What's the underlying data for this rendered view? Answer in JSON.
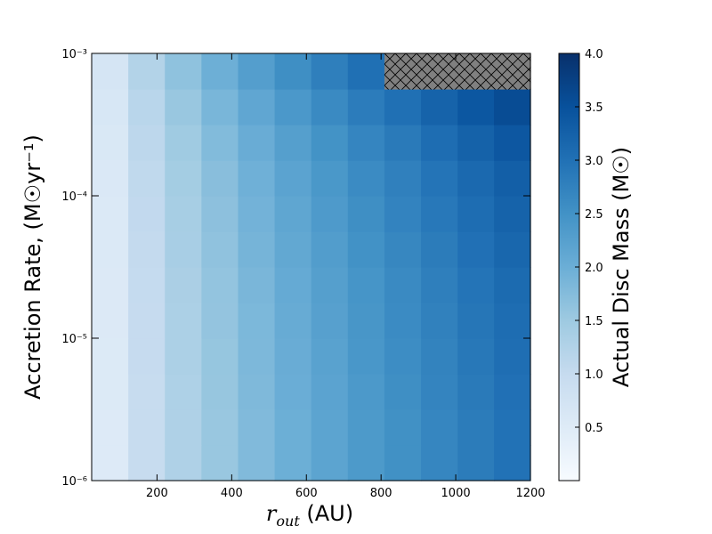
{
  "chart_data": {
    "type": "heatmap",
    "xlabel": {
      "base": "r",
      "sub": "out",
      "rest": " (AU)"
    },
    "ylabel": "Accretion Rate, (M☉yr⁻¹)",
    "colorbar_label": "Actual Disc Mass (M☉)",
    "x": [
      74,
      172,
      270,
      368,
      466,
      564,
      662,
      760,
      858,
      956,
      1054,
      1151
    ],
    "y": [
      1.33e-06,
      2.37e-06,
      4.22e-06,
      7.5e-06,
      1.33e-05,
      2.37e-05,
      4.22e-05,
      7.5e-05,
      0.000133,
      0.000237,
      0.000422,
      0.00075
    ],
    "z": [
      [
        0.53,
        0.97,
        1.29,
        1.55,
        1.78,
        1.99,
        2.18,
        2.36,
        2.52,
        2.68,
        2.84,
        2.98
      ],
      [
        0.53,
        0.97,
        1.29,
        1.55,
        1.78,
        1.99,
        2.18,
        2.36,
        2.52,
        2.68,
        2.84,
        2.98
      ],
      [
        0.54,
        0.98,
        1.3,
        1.57,
        1.8,
        2.01,
        2.2,
        2.38,
        2.55,
        2.71,
        2.87,
        3.01
      ],
      [
        0.54,
        0.99,
        1.32,
        1.58,
        1.82,
        2.03,
        2.22,
        2.41,
        2.57,
        2.73,
        2.9,
        3.04
      ],
      [
        0.55,
        1.0,
        1.33,
        1.6,
        1.83,
        2.05,
        2.25,
        2.43,
        2.6,
        2.76,
        2.93,
        3.07
      ],
      [
        0.55,
        1.01,
        1.34,
        1.61,
        1.85,
        2.07,
        2.27,
        2.45,
        2.62,
        2.79,
        2.95,
        3.1
      ],
      [
        0.56,
        1.03,
        1.37,
        1.64,
        1.89,
        2.11,
        2.31,
        2.5,
        2.67,
        2.84,
        3.01,
        3.16
      ],
      [
        0.57,
        1.05,
        1.39,
        1.67,
        1.92,
        2.15,
        2.35,
        2.55,
        2.72,
        2.89,
        3.07,
        3.22
      ],
      [
        0.58,
        1.07,
        1.42,
        1.71,
        1.96,
        2.19,
        2.4,
        2.6,
        2.77,
        2.95,
        3.12,
        3.28
      ],
      [
        0.6,
        1.11,
        1.47,
        1.77,
        2.03,
        2.27,
        2.49,
        2.69,
        2.87,
        3.06,
        3.24,
        3.4
      ],
      [
        0.64,
        1.16,
        1.55,
        1.86,
        2.14,
        2.39,
        2.62,
        2.83,
        3.02,
        3.22,
        3.41,
        3.58
      ],
      [
        0.68,
        1.24,
        1.65,
        1.98,
        2.28,
        2.55,
        2.79,
        3.02,
        null,
        null,
        null,
        null
      ]
    ],
    "xlim": [
      25,
      1200
    ],
    "xticks": [
      200,
      400,
      600,
      800,
      1000,
      1200
    ],
    "ylim": [
      1e-06,
      0.001
    ],
    "yscale": "log",
    "yticks": [
      {
        "value": 1e-06,
        "label": "10⁻⁶"
      },
      {
        "value": 1e-05,
        "label": "10⁻⁵"
      },
      {
        "value": 0.0001,
        "label": "10⁻⁴"
      },
      {
        "value": 0.001,
        "label": "10⁻³"
      }
    ],
    "clim": [
      0,
      4
    ],
    "cticks": [
      0.5,
      {
        "value": 1,
        "label": "1.0"
      },
      1.5,
      {
        "value": 2,
        "label": "2.0"
      },
      2.5,
      {
        "value": 3,
        "label": "3.0"
      },
      3.5,
      {
        "value": 4,
        "label": "4.0"
      }
    ],
    "colormap": [
      "#f7fbff",
      "#deebf7",
      "#c6dbef",
      "#9ecae1",
      "#6baed6",
      "#4292c6",
      "#2171b5",
      "#08519c",
      "#08306b"
    ],
    "masked_color": "#808080"
  }
}
